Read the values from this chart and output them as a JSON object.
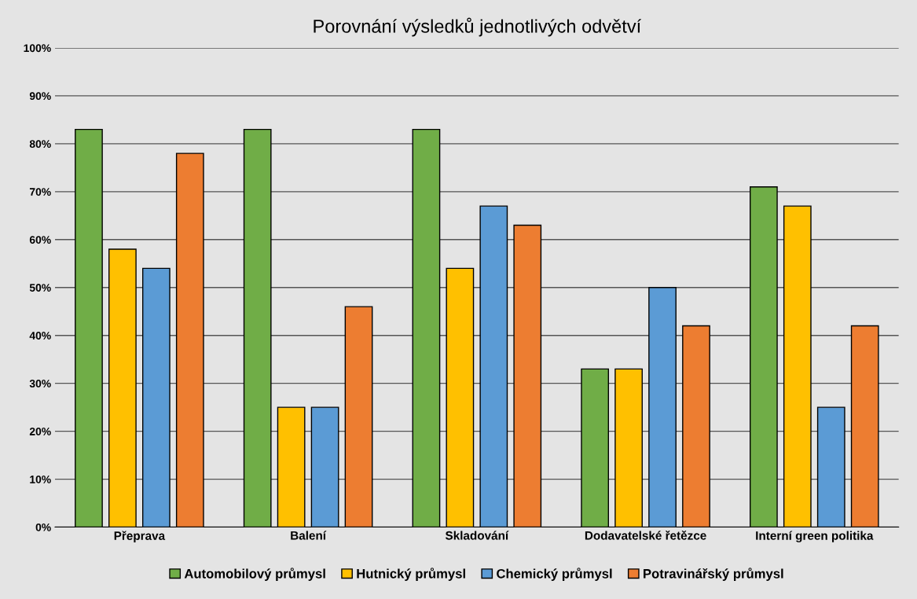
{
  "chart_data": {
    "type": "bar",
    "title": "Porovnání výsledků jednotlivých odvětví",
    "categories": [
      "Přeprava",
      "Balení",
      "Skladování",
      "Dodavatelské řetězce",
      "Interní green politika"
    ],
    "series": [
      {
        "name": "Automobilový průmysl",
        "color": "#70ad47",
        "values": [
          83,
          83,
          83,
          33,
          71
        ]
      },
      {
        "name": "Hutnický průmysl",
        "color": "#ffc000",
        "values": [
          58,
          25,
          54,
          33,
          67
        ]
      },
      {
        "name": "Chemický průmysl",
        "color": "#5b9bd5",
        "values": [
          54,
          25,
          67,
          50,
          25
        ]
      },
      {
        "name": "Potravinářský průmysl",
        "color": "#ed7d31",
        "values": [
          78,
          46,
          63,
          42,
          42
        ]
      }
    ],
    "ylim": [
      0,
      100
    ],
    "yticks": [
      {
        "value": 0,
        "label": "0%"
      },
      {
        "value": 10,
        "label": "10%"
      },
      {
        "value": 20,
        "label": "20%"
      },
      {
        "value": 30,
        "label": "30%"
      },
      {
        "value": 40,
        "label": "40%"
      },
      {
        "value": 50,
        "label": "50%"
      },
      {
        "value": 60,
        "label": "60%"
      },
      {
        "value": 70,
        "label": "70%"
      },
      {
        "value": 80,
        "label": "80%"
      },
      {
        "value": 90,
        "label": "90%"
      },
      {
        "value": 100,
        "label": "100%"
      }
    ],
    "grid": "y",
    "legend": "bottom"
  }
}
